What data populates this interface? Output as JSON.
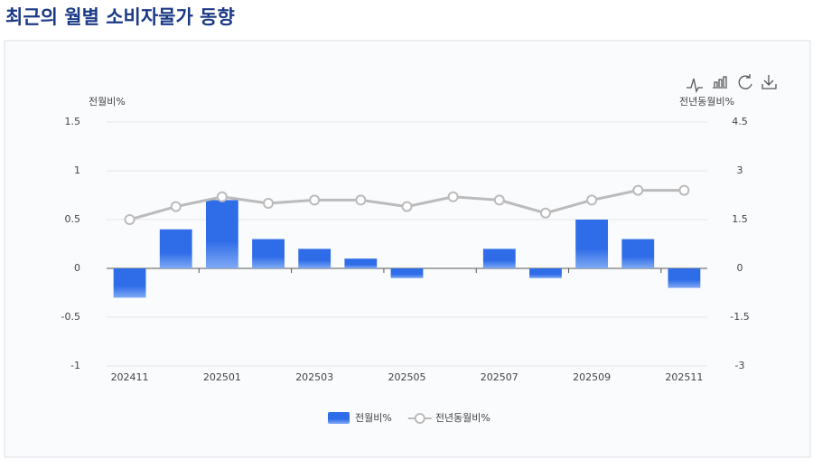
{
  "chart_data": {
    "type": "bar",
    "title": "최근의 월별 소비자물가 동향",
    "y_label": "전월비%",
    "y2_label": "전년동월비%",
    "categories": [
      "202411",
      null,
      "202501",
      null,
      "202503",
      null,
      "202505",
      null,
      "202507",
      null,
      "202509",
      null,
      "202511"
    ],
    "series": [
      {
        "name": "전월비%",
        "type": "bar",
        "color": "#2f6de8",
        "values": [
          -0.3,
          0.4,
          0.7,
          0.3,
          0.2,
          0.1,
          -0.1,
          0.0,
          0.2,
          -0.1,
          0.5,
          0.3,
          -0.2
        ]
      },
      {
        "name": "전년동월비%",
        "type": "line",
        "axis": "y2",
        "color": "#bbbbbb",
        "values": [
          1.5,
          1.9,
          2.2,
          2.0,
          2.1,
          2.1,
          1.9,
          2.2,
          2.1,
          1.7,
          2.1,
          2.4,
          2.4
        ]
      }
    ],
    "ylim": [
      -1,
      1.5
    ],
    "yticks": [
      -1,
      -0.5,
      0,
      0.5,
      1,
      1.5
    ],
    "y2lim": [
      -3,
      4.5
    ],
    "y2ticks": [
      -3,
      -1.5,
      0,
      1.5,
      3,
      4.5
    ],
    "grid": true,
    "legend": "bottom"
  }
}
